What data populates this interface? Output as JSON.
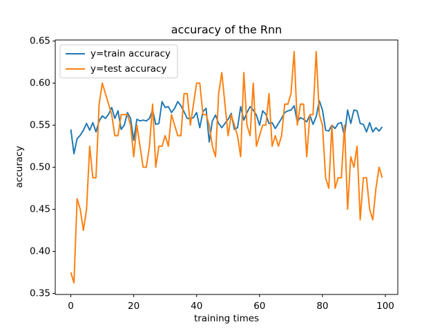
{
  "chart_data": {
    "type": "line",
    "title": "accuracy of the Rnn",
    "x_label": "training times",
    "y_label": "accuracy",
    "x": [
      0,
      1,
      2,
      3,
      4,
      5,
      6,
      7,
      8,
      9,
      10,
      11,
      12,
      13,
      14,
      15,
      16,
      17,
      18,
      19,
      20,
      21,
      22,
      23,
      24,
      25,
      26,
      27,
      28,
      29,
      30,
      31,
      32,
      33,
      34,
      35,
      36,
      37,
      38,
      39,
      40,
      41,
      42,
      43,
      44,
      45,
      46,
      47,
      48,
      49,
      50,
      51,
      52,
      53,
      54,
      55,
      56,
      57,
      58,
      59,
      60,
      61,
      62,
      63,
      64,
      65,
      66,
      67,
      68,
      69,
      70,
      71,
      72,
      73,
      74,
      75,
      76,
      77,
      78,
      79,
      80,
      81,
      82,
      83,
      84,
      85,
      86,
      87,
      88,
      89,
      90,
      91,
      92,
      93,
      94,
      95,
      96,
      97,
      98,
      99
    ],
    "series": [
      {
        "name": "y=train accuracy",
        "color": "#1f77b4",
        "values": [
          0.545,
          0.516,
          0.534,
          0.538,
          0.544,
          0.552,
          0.544,
          0.553,
          0.542,
          0.555,
          0.561,
          0.558,
          0.563,
          0.571,
          0.558,
          0.567,
          0.545,
          0.55,
          0.565,
          0.558,
          0.532,
          0.557,
          0.555,
          0.556,
          0.555,
          0.558,
          0.568,
          0.551,
          0.552,
          0.578,
          0.571,
          0.572,
          0.565,
          0.57,
          0.578,
          0.573,
          0.566,
          0.558,
          0.558,
          0.559,
          0.565,
          0.547,
          0.566,
          0.57,
          0.53,
          0.555,
          0.562,
          0.552,
          0.547,
          0.552,
          0.557,
          0.564,
          0.545,
          0.547,
          0.572,
          0.556,
          0.565,
          0.572,
          0.568,
          0.562,
          0.55,
          0.567,
          0.563,
          0.552,
          0.553,
          0.546,
          0.552,
          0.558,
          0.565,
          0.567,
          0.568,
          0.573,
          0.554,
          0.559,
          0.557,
          0.554,
          0.562,
          0.551,
          0.56,
          0.579,
          0.568,
          0.544,
          0.543,
          0.55,
          0.546,
          0.552,
          0.553,
          0.537,
          0.568,
          0.552,
          0.568,
          0.567,
          0.552,
          0.551,
          0.542,
          0.553,
          0.542,
          0.547,
          0.543,
          0.548
        ]
      },
      {
        "name": "y=test accuracy",
        "color": "#ff7f0e",
        "values": [
          0.375,
          0.3625,
          0.4625,
          0.45,
          0.425,
          0.45,
          0.525,
          0.4875,
          0.4875,
          0.575,
          0.6,
          0.5875,
          0.575,
          0.5625,
          0.5375,
          0.5375,
          0.5625,
          0.5625,
          0.5625,
          0.55,
          0.5125,
          0.55,
          0.525,
          0.5,
          0.5,
          0.525,
          0.575,
          0.5,
          0.525,
          0.525,
          0.5375,
          0.525,
          0.5625,
          0.55,
          0.5375,
          0.5375,
          0.5875,
          0.5875,
          0.55,
          0.575,
          0.6,
          0.6,
          0.5625,
          0.5625,
          0.55,
          0.525,
          0.5125,
          0.5875,
          0.6125,
          0.575,
          0.5375,
          0.5625,
          0.55,
          0.5375,
          0.5125,
          0.6125,
          0.55,
          0.5375,
          0.6,
          0.525,
          0.5375,
          0.55,
          0.55,
          0.5875,
          0.525,
          0.5375,
          0.525,
          0.5375,
          0.575,
          0.575,
          0.5875,
          0.6375,
          0.55,
          0.575,
          0.575,
          0.5125,
          0.5625,
          0.5625,
          0.6375,
          0.5625,
          0.55,
          0.4875,
          0.475,
          0.55,
          0.475,
          0.4875,
          0.4875,
          0.55,
          0.45,
          0.5125,
          0.5,
          0.525,
          0.4375,
          0.4875,
          0.4875,
          0.45,
          0.4375,
          0.475,
          0.5,
          0.4875
        ]
      }
    ],
    "xlim": [
      -4.95,
      103.95
    ],
    "xticks": [
      0,
      20,
      40,
      60,
      80,
      100
    ],
    "ylim": [
      0.34875,
      0.65125
    ],
    "yticks": [
      0.35,
      {
        "value": 0.4,
        "label": "0.40"
      },
      0.45,
      {
        "value": 0.5,
        "label": "0.50"
      },
      0.55,
      {
        "value": 0.6,
        "label": "0.60"
      },
      0.65
    ],
    "legend": "upper left"
  }
}
